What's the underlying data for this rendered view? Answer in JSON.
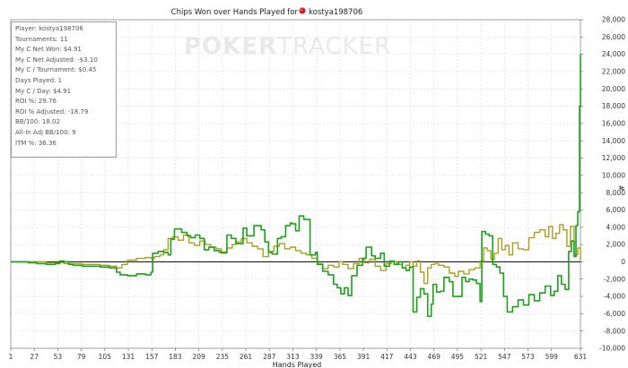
{
  "watermark": {
    "part1": "POKER",
    "part2": "TRACKER"
  },
  "stats": [
    "Player: kostya198706",
    "Tournaments: 11",
    "My C Net Won: $4.91",
    "My C Net Adjusted: -$3.10",
    "My C / Tournament: $0.45",
    "Days Played: 1",
    "My C / Day: $4.91",
    "ROI %: 29.76",
    "ROI % Adjusted: -18.79",
    "BB/100: 18.02",
    "All-In Adj BB/100: 9",
    "ITM %: 36.36"
  ],
  "colors": {
    "net_won": "#1aa11a",
    "all_in_adjusted": "#a8a01c",
    "zero_line": "#000000",
    "grid": "#d9d9d9"
  },
  "chart_data": {
    "type": "line",
    "title": "Chips Won over Hands Played for",
    "title_player": "kostya198706",
    "xlabel": "Hands Played",
    "ylabel": "#",
    "xlim": [
      1,
      631
    ],
    "ylim": [
      -10000,
      28000
    ],
    "x_ticks": [
      1,
      27,
      53,
      79,
      105,
      131,
      157,
      183,
      209,
      235,
      261,
      287,
      313,
      339,
      365,
      391,
      417,
      443,
      469,
      495,
      521,
      547,
      573,
      599,
      631
    ],
    "y_ticks": [
      -10000,
      -8000,
      -6000,
      -4000,
      -2000,
      0,
      2000,
      4000,
      6000,
      8000,
      10000,
      12000,
      14000,
      16000,
      18000,
      20000,
      22000,
      24000,
      26000,
      28000
    ],
    "y_tick_labels": [
      "-10,000",
      "-8,000",
      "-6,000",
      "-4,000",
      "-2,000",
      "0",
      "2,000",
      "4,000",
      "6,000",
      "8,000",
      "10,000",
      "12,000",
      "14,000",
      "16,000",
      "18,000",
      "20,000",
      "22,000",
      "24,000",
      "26,000",
      "28,000"
    ],
    "grid": true,
    "legend": "none",
    "series": [
      {
        "x": [
          1,
          10,
          20,
          30,
          40,
          50,
          55,
          60,
          65,
          70,
          80,
          90,
          100,
          110,
          118,
          122,
          126,
          130,
          140,
          150,
          156,
          158,
          164,
          170,
          175,
          178,
          182,
          190,
          196,
          200,
          205,
          210,
          215,
          220,
          226,
          232,
          240,
          245,
          250,
          258,
          262,
          270,
          278,
          282,
          286,
          290,
          296,
          300,
          305,
          310,
          312,
          316,
          320,
          325,
          332,
          338,
          340,
          346,
          352,
          358,
          362,
          366,
          370,
          374,
          378,
          384,
          390,
          394,
          400,
          404,
          410,
          414,
          420,
          425,
          430,
          434,
          438,
          442,
          446,
          450,
          454,
          458,
          462,
          466,
          468,
          472,
          476,
          480,
          486,
          490,
          496,
          500,
          504,
          508,
          512,
          516,
          520,
          522,
          526,
          530,
          534,
          538,
          542,
          546,
          550,
          556,
          562,
          568,
          574,
          580,
          586,
          592,
          598,
          602,
          606,
          610,
          614,
          618,
          621,
          624,
          626,
          628,
          630,
          631
        ],
        "values": [
          0,
          0,
          -100,
          -200,
          -300,
          -200,
          100,
          0,
          -300,
          -400,
          -500,
          -500,
          -600,
          -700,
          -1200,
          -1500,
          -1500,
          -1600,
          -1400,
          -1500,
          -1200,
          1000,
          1200,
          1100,
          800,
          2600,
          3800,
          3400,
          3000,
          2800,
          3100,
          2700,
          1400,
          1700,
          1300,
          1100,
          3100,
          2700,
          2100,
          3900,
          3000,
          4200,
          3700,
          2300,
          1100,
          900,
          2700,
          2900,
          4200,
          4500,
          4400,
          3600,
          5300,
          4900,
          800,
          1100,
          -300,
          -1100,
          -1500,
          -2600,
          -3000,
          -3700,
          -3000,
          -3900,
          -1600,
          -400,
          400,
          1700,
          700,
          400,
          1000,
          -500,
          100,
          -300,
          0,
          -700,
          -1000,
          -600,
          -5800,
          -4100,
          -3100,
          -3700,
          -6300,
          -4900,
          -2600,
          -3500,
          -3400,
          -1800,
          -2300,
          -4000,
          -4000,
          -1800,
          -2300,
          -2000,
          -2100,
          -2500,
          -4600,
          3500,
          3200,
          3000,
          -300,
          -600,
          -1300,
          -4000,
          -5800,
          -5200,
          -4400,
          -5000,
          -3800,
          -4500,
          -3600,
          -2800,
          -3900,
          -3400,
          -1600,
          -2600,
          -3200,
          1200,
          2400,
          600,
          4200,
          5800,
          18000,
          24000
        ]
      },
      {
        "x": [
          1,
          20,
          40,
          60,
          80,
          100,
          110,
          118,
          124,
          130,
          140,
          150,
          156,
          160,
          166,
          170,
          175,
          180,
          186,
          192,
          198,
          204,
          210,
          216,
          222,
          228,
          234,
          240,
          246,
          250,
          256,
          262,
          268,
          274,
          280,
          286,
          292,
          298,
          304,
          310,
          316,
          322,
          328,
          334,
          340,
          346,
          352,
          358,
          364,
          368,
          374,
          380,
          386,
          392,
          398,
          404,
          410,
          416,
          422,
          428,
          434,
          438,
          442,
          446,
          450,
          454,
          458,
          462,
          466,
          470,
          474,
          480,
          486,
          492,
          496,
          502,
          508,
          514,
          520,
          524,
          528,
          532,
          536,
          540,
          544,
          548,
          552,
          556,
          562,
          568,
          574,
          580,
          586,
          592,
          596,
          600,
          604,
          608,
          612,
          616,
          620,
          624,
          628,
          631
        ],
        "values": [
          0,
          0,
          -100,
          -200,
          -300,
          -400,
          -500,
          -700,
          -300,
          200,
          400,
          500,
          400,
          600,
          800,
          1400,
          2700,
          2900,
          2500,
          3100,
          2200,
          1900,
          2400,
          2000,
          1700,
          1500,
          1000,
          1600,
          2000,
          2300,
          2700,
          2200,
          1800,
          1500,
          600,
          1200,
          1800,
          2100,
          1500,
          1700,
          1300,
          1000,
          800,
          400,
          -200,
          -800,
          -400,
          -600,
          0,
          -300,
          -800,
          -200,
          400,
          -100,
          300,
          -500,
          -1000,
          -200,
          0,
          -300,
          -700,
          -400,
          0,
          -500,
          100,
          -1200,
          -2500,
          -700,
          -300,
          -200,
          -400,
          -600,
          -1300,
          -1700,
          -1100,
          -1400,
          -900,
          -700,
          100,
          1600,
          1300,
          300,
          1000,
          2700,
          1400,
          1900,
          800,
          2200,
          1500,
          1400,
          2800,
          3400,
          3700,
          2900,
          4100,
          2700,
          3300,
          4300,
          3700,
          1800,
          4100,
          800,
          1600,
          200
        ]
      }
    ]
  }
}
